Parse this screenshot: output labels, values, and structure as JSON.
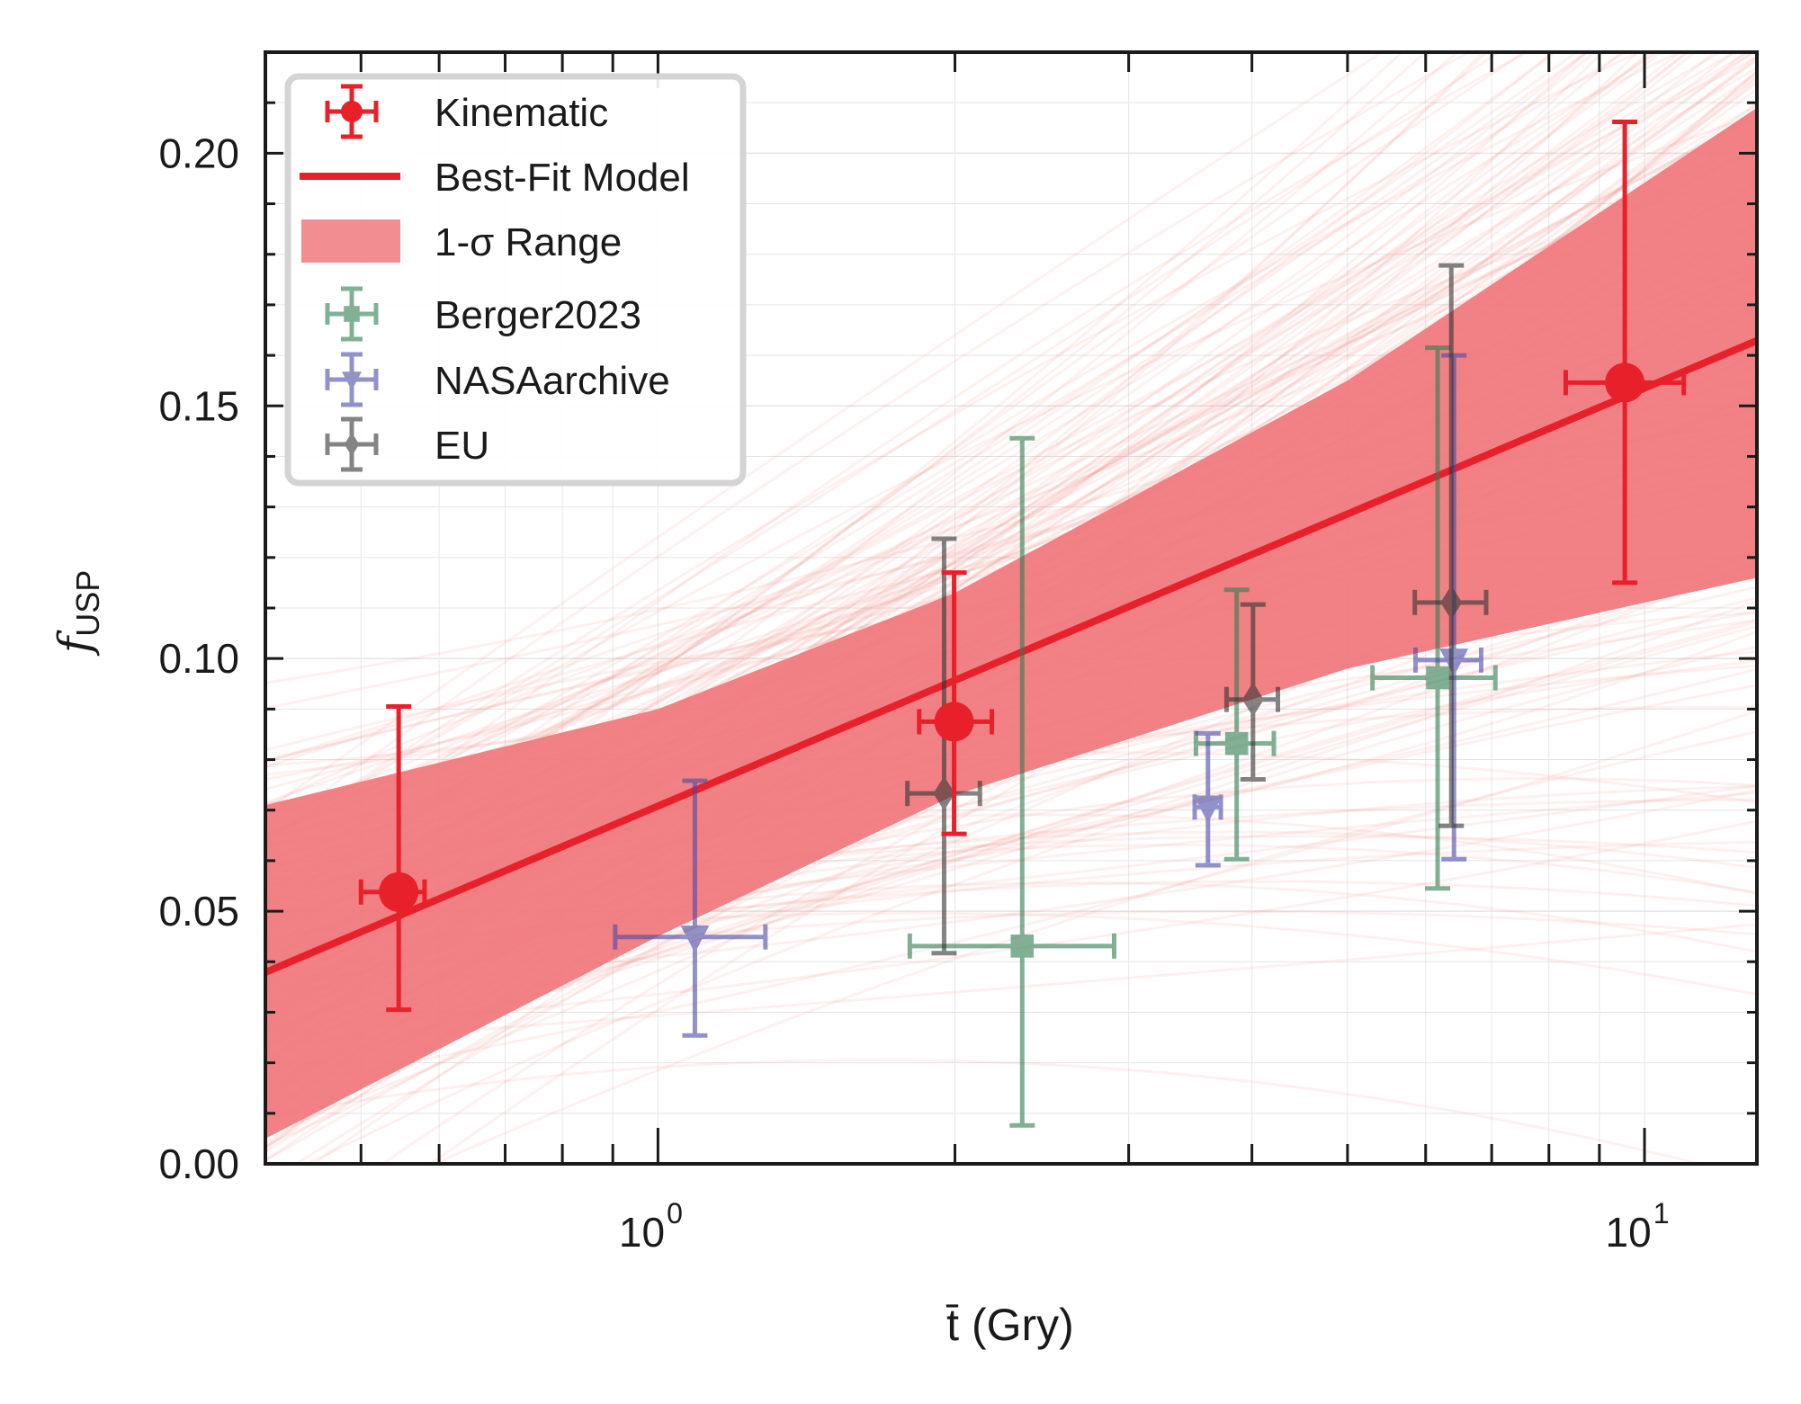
{
  "chart_data": {
    "type": "scatter",
    "title": "",
    "xlabel": "t̄ (Gry)",
    "ylabel": "f_USP",
    "ylabel_main": "f",
    "ylabel_sub": "USP",
    "xlabel_var": "t",
    "xlabel_unit": " (Gry)",
    "xscale": "log",
    "xlim": [
      0.4,
      13
    ],
    "ylim": [
      0,
      0.22
    ],
    "grid": true,
    "legend_position": "top-left",
    "y_ticks": [
      "0.00",
      "0.05",
      "0.10",
      "0.15",
      "0.20"
    ],
    "x_ticks": [
      {
        "base": "10",
        "exp": "0",
        "value": 1
      },
      {
        "base": "10",
        "exp": "1",
        "value": 10
      }
    ],
    "best_fit": {
      "name": "Best-Fit Model",
      "intercept": 0.0708,
      "slope_per_log10": 0.0827,
      "color": "#e8202a"
    },
    "band": {
      "name": "1-σ Range",
      "color": "#f07a7e",
      "x": [
        0.4,
        1,
        2,
        5,
        13
      ],
      "upper": [
        0.071,
        0.09,
        0.113,
        0.155,
        0.209
      ],
      "lower": [
        0.005,
        0.045,
        0.073,
        0.098,
        0.116
      ]
    },
    "series": [
      {
        "name": "Kinematic",
        "marker": "circle",
        "color": "#e8202a",
        "alpha": 1.0,
        "points": [
          {
            "x": 0.546,
            "y": 0.0538,
            "xlo": 0.5,
            "xhi": 0.58,
            "ylo": 0.0305,
            "yhi": 0.0905
          },
          {
            "x": 1.996,
            "y": 0.0875,
            "xlo": 1.84,
            "xhi": 2.18,
            "ylo": 0.0653,
            "yhi": 0.117
          },
          {
            "x": 9.55,
            "y": 0.1546,
            "xlo": 8.32,
            "xhi": 10.96,
            "ylo": 0.115,
            "yhi": 0.2062
          }
        ]
      },
      {
        "name": "Berger2023",
        "marker": "square",
        "color": "#2e7d4f",
        "alpha": 0.6,
        "points": [
          {
            "x": 2.34,
            "y": 0.0431,
            "xlo": 1.8,
            "xhi": 2.9,
            "ylo": 0.0076,
            "yhi": 0.1436
          },
          {
            "x": 3.86,
            "y": 0.0832,
            "xlo": 3.51,
            "xhi": 4.21,
            "ylo": 0.0603,
            "yhi": 0.1136
          },
          {
            "x": 6.17,
            "y": 0.0962,
            "xlo": 5.3,
            "xhi": 7.06,
            "ylo": 0.0545,
            "yhi": 0.1615
          }
        ]
      },
      {
        "name": "NASAarchive",
        "marker": "triangle-down",
        "color": "#4a4aa8",
        "alpha": 0.6,
        "points": [
          {
            "x": 1.09,
            "y": 0.0449,
            "xlo": 0.905,
            "xhi": 1.285,
            "ylo": 0.0254,
            "yhi": 0.0758
          },
          {
            "x": 3.61,
            "y": 0.0706,
            "xlo": 3.5,
            "xhi": 3.72,
            "ylo": 0.0591,
            "yhi": 0.0852
          },
          {
            "x": 6.41,
            "y": 0.0997,
            "xlo": 5.86,
            "xhi": 6.83,
            "ylo": 0.0603,
            "yhi": 0.16
          }
        ]
      },
      {
        "name": "EU",
        "marker": "diamond",
        "color": "#333333",
        "alpha": 0.6,
        "points": [
          {
            "x": 1.95,
            "y": 0.0733,
            "xlo": 1.79,
            "xhi": 2.12,
            "ylo": 0.0417,
            "yhi": 0.1237
          },
          {
            "x": 4.01,
            "y": 0.0919,
            "xlo": 3.77,
            "xhi": 4.25,
            "ylo": 0.0761,
            "yhi": 0.1107
          },
          {
            "x": 6.37,
            "y": 0.1111,
            "xlo": 5.85,
            "xhi": 6.91,
            "ylo": 0.0669,
            "yhi": 0.1778
          }
        ]
      }
    ],
    "legend": [
      {
        "label": "Kinematic",
        "kind": "errorbar",
        "series": 0
      },
      {
        "label": "Best-Fit Model",
        "kind": "line"
      },
      {
        "label": "1-σ Range",
        "kind": "patch"
      },
      {
        "label": "Berger2023",
        "kind": "errorbar",
        "series": 1
      },
      {
        "label": "NASAarchive",
        "kind": "errorbar",
        "series": 2
      },
      {
        "label": "EU",
        "kind": "errorbar",
        "series": 3
      }
    ]
  }
}
